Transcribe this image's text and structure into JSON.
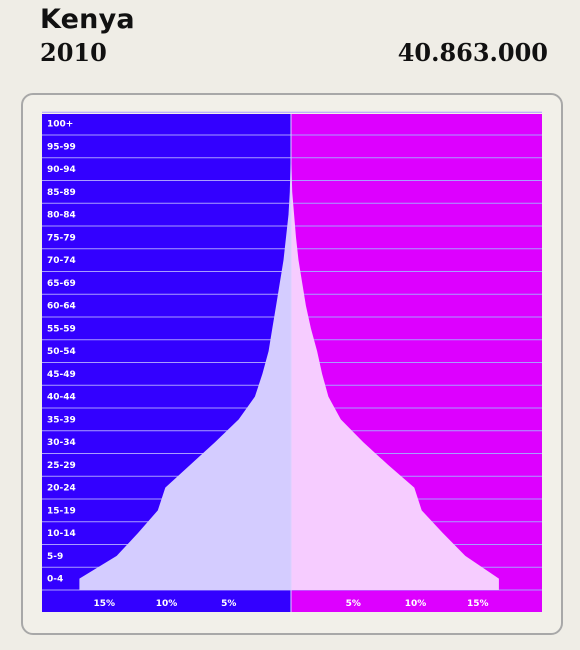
{
  "header": {
    "country": "Kenya",
    "year": "2010",
    "population": "40.863.000"
  },
  "colors": {
    "male_background": "#3300ff",
    "female_background": "#dd00ff",
    "male_fill": "#d4ccff",
    "female_fill": "#f6ccff",
    "grid": "#a99cff"
  },
  "chart_data": {
    "type": "bar",
    "orientation": "horizontal-pyramid",
    "categories": [
      "0-4",
      "5-9",
      "10-14",
      "15-19",
      "20-24",
      "25-29",
      "30-34",
      "35-39",
      "40-44",
      "45-49",
      "50-54",
      "55-59",
      "60-64",
      "65-69",
      "70-74",
      "75-79",
      "80-84",
      "85-89",
      "90-94",
      "95-99",
      "100+"
    ],
    "series": [
      {
        "side": "left",
        "values": [
          17.0,
          14.0,
          12.3,
          10.7,
          10.1,
          8.1,
          6.1,
          4.2,
          2.9,
          2.3,
          1.8,
          1.5,
          1.2,
          0.9,
          0.6,
          0.4,
          0.2,
          0.1,
          0.05,
          0.02,
          0.0
        ]
      },
      {
        "side": "right",
        "values": [
          16.7,
          14.0,
          12.2,
          10.5,
          9.9,
          7.8,
          5.8,
          4.0,
          3.0,
          2.5,
          2.1,
          1.6,
          1.2,
          0.9,
          0.6,
          0.4,
          0.25,
          0.1,
          0.05,
          0.02,
          0.0
        ]
      }
    ],
    "x_ticks_left": [
      "15%",
      "10%",
      "5%"
    ],
    "x_ticks_right": [
      "5%",
      "10%",
      "15%"
    ],
    "tick_values": [
      5,
      10,
      15
    ],
    "xlim": [
      0,
      20
    ],
    "grid": true
  }
}
